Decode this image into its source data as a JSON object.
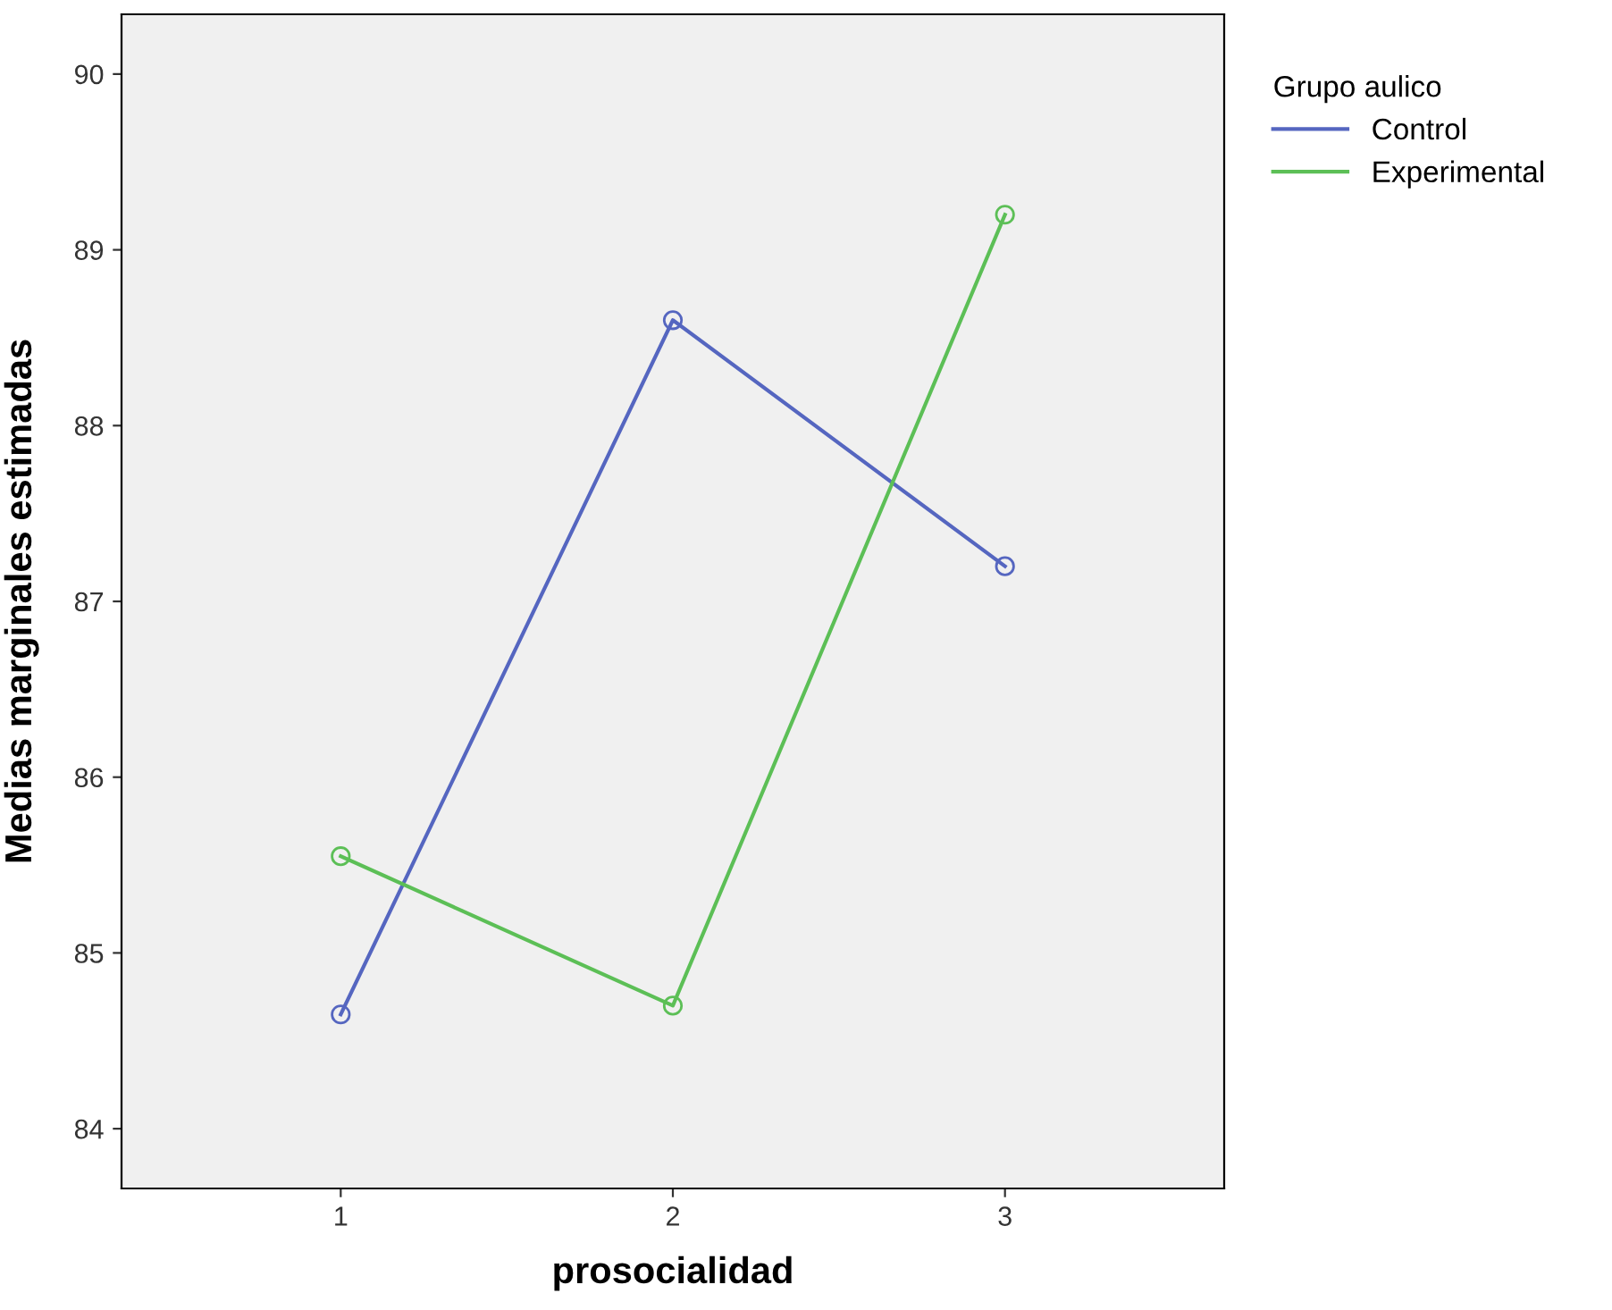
{
  "chart_data": {
    "type": "line",
    "xlabel": "prosocialidad",
    "ylabel": "Medias marginales estimadas",
    "legend_title": "Grupo aulico",
    "x": [
      1,
      2,
      3
    ],
    "series": [
      {
        "name": "Control",
        "color": "#5566c0",
        "values": [
          84.65,
          88.6,
          87.2
        ]
      },
      {
        "name": "Experimental",
        "color": "#5cbf56",
        "values": [
          85.55,
          84.7,
          89.2
        ]
      }
    ],
    "xlim": [
      0.34,
      3.66
    ],
    "xticks": [
      1,
      2,
      3
    ],
    "ylim": [
      83.66,
      90.34
    ],
    "yticks": [
      84,
      85,
      86,
      87,
      88,
      89,
      90
    ],
    "grid": false,
    "legend": "right",
    "marker": "circle",
    "line_style": "solid"
  }
}
